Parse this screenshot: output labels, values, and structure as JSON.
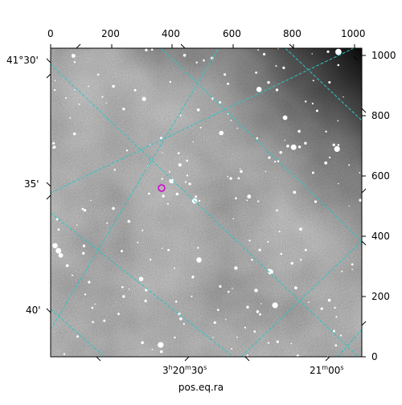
{
  "figure": {
    "xlabel": "pos.eq.ra",
    "top_ticks": [
      "0",
      "200",
      "400",
      "600",
      "800",
      "1000"
    ],
    "right_ticks": [
      "0",
      "200",
      "400",
      "600",
      "800",
      "1000"
    ],
    "dec_labels": [
      "41°30'",
      "35'",
      "40'"
    ],
    "ra_labels": [
      {
        "h": "3",
        "hs": "h",
        "m": "20",
        "ms": "m",
        "s": "30",
        "ss": "s"
      },
      {
        "h": "",
        "hs": "",
        "m": "21",
        "ms": "m",
        "s": "00",
        "ss": "s"
      }
    ]
  },
  "image": {
    "type": "grayscale astronomical image",
    "grid_color": "#2ec4c4",
    "marker_color": "#d000d0"
  }
}
